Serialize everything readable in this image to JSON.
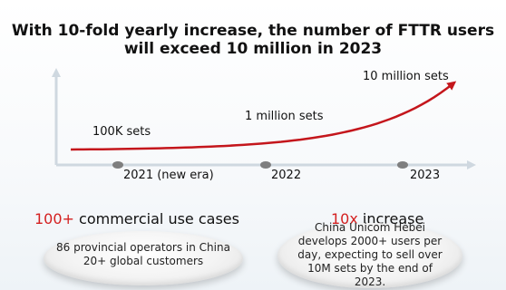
{
  "title": {
    "line1": "With 10-fold yearly increase, the number of FTTR users",
    "line2": "will exceed 10 million in 2023"
  },
  "chart_data": {
    "type": "line",
    "x": [
      "2021 (new era)",
      "2022",
      "2023"
    ],
    "series": [
      {
        "values": [
          100000,
          1000000,
          10000000
        ]
      }
    ],
    "point_labels": [
      "100K sets",
      "1 million sets",
      "10 million sets"
    ],
    "line_color": "#c4161c"
  },
  "left_stat": {
    "number": "100+",
    "text": " commercial use cases",
    "line1": "86 provincial operators in China",
    "line2": "20+ global customers"
  },
  "right_stat": {
    "number": "10x",
    "text": " increase",
    "line1": "China Unicom Hebei",
    "line2": "develops 2000+ users per",
    "line3": "day, expecting to sell over",
    "line4": "10M sets by the end of",
    "line5": "2023."
  }
}
